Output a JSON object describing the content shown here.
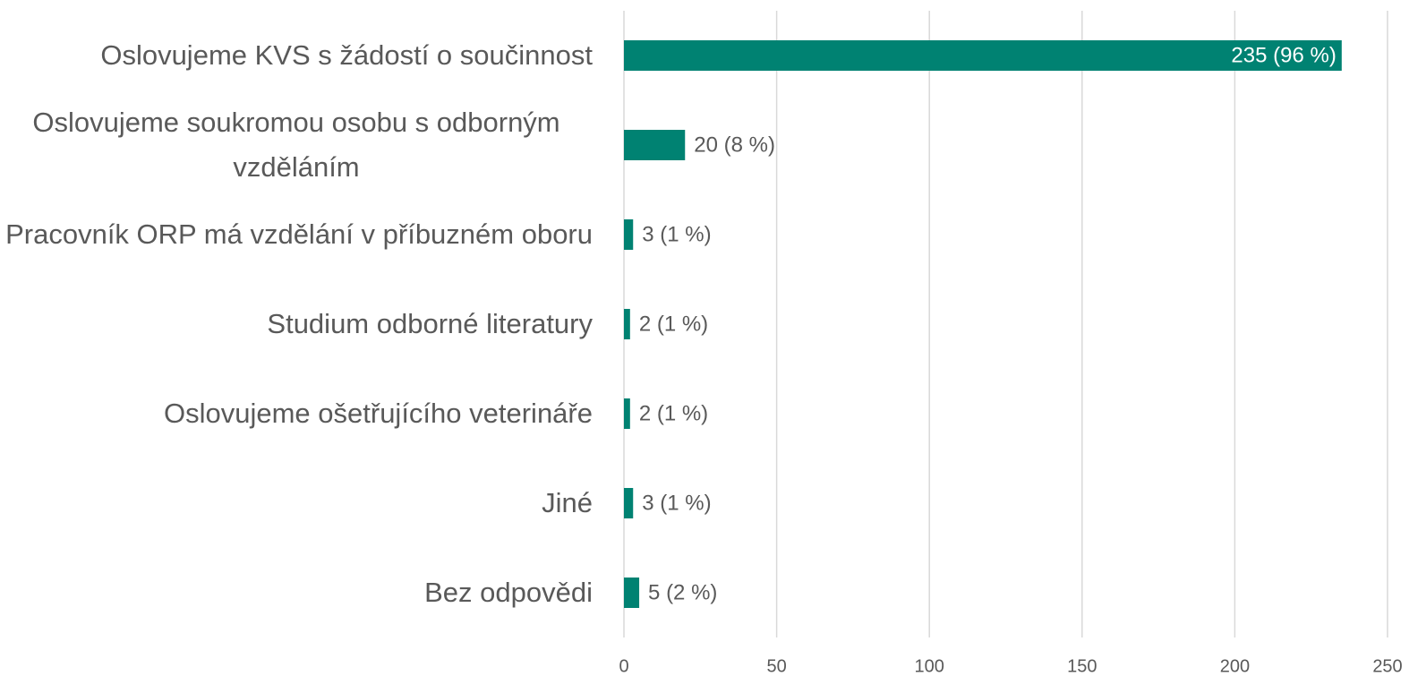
{
  "chart_data": {
    "type": "bar",
    "orientation": "horizontal",
    "categories": [
      "Oslovujeme KVS s žádostí o součinnost",
      "Oslovujeme soukromou osobu s odborným vzděláním",
      "Pracovník ORP má vzdělání v příbuzném oboru",
      "Studium odborné literatury",
      "Oslovujeme ošetřujícího veterináře",
      "Jiné",
      "Bez odpovědi"
    ],
    "values": [
      235,
      20,
      3,
      2,
      2,
      3,
      5
    ],
    "value_labels": [
      "235 (96 %)",
      "20 (8 %)",
      "3 (1 %)",
      "2 (1 %)",
      "2 (1 %)",
      "3 (1 %)",
      "5 (2 %)"
    ],
    "color": "#008272",
    "xlim": [
      0,
      250
    ],
    "xticks": [
      0,
      50,
      100,
      150,
      200,
      250
    ],
    "grid": true
  }
}
